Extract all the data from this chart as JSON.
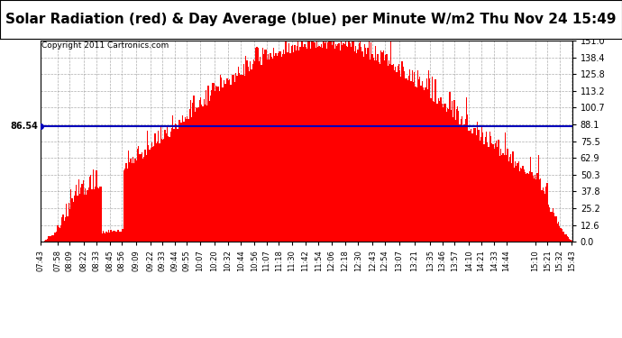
{
  "title": "Solar Radiation (red) & Day Average (blue) per Minute W/m2 Thu Nov 24 15:49",
  "copyright": "Copyright 2011 Cartronics.com",
  "avg_value": 86.54,
  "ymin": 0.0,
  "ymax": 151.0,
  "yticks": [
    0.0,
    12.6,
    25.2,
    37.8,
    50.3,
    62.9,
    75.5,
    88.1,
    100.7,
    113.2,
    125.8,
    138.4,
    151.0
  ],
  "bar_color": "#FF0000",
  "avg_color": "#0000BB",
  "background_color": "#FFFFFF",
  "grid_color": "#999999",
  "title_fontsize": 11,
  "copyright_fontsize": 6.5,
  "x_tick_labels": [
    "07:43",
    "07:58",
    "08:09",
    "08:22",
    "08:33",
    "08:45",
    "08:56",
    "09:09",
    "09:22",
    "09:33",
    "09:44",
    "09:55",
    "10:07",
    "10:20",
    "10:32",
    "10:44",
    "10:56",
    "11:07",
    "11:18",
    "11:30",
    "11:42",
    "11:54",
    "12:06",
    "12:18",
    "12:30",
    "12:43",
    "12:54",
    "13:07",
    "13:21",
    "13:35",
    "13:46",
    "13:57",
    "14:10",
    "14:21",
    "14:33",
    "14:44",
    "15:10",
    "15:21",
    "15:32",
    "15:43"
  ]
}
